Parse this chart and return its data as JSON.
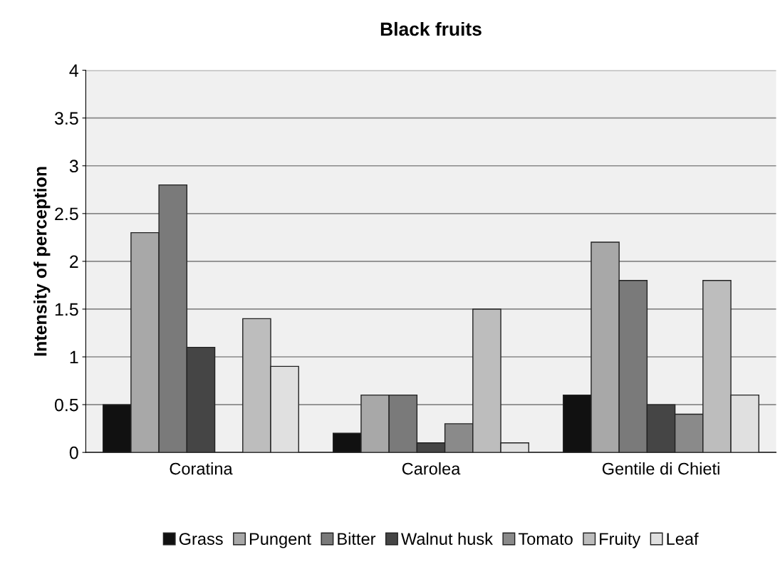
{
  "chart_data": {
    "type": "bar",
    "title": "Black fruits",
    "ylabel": "Intensity of perception",
    "categories": [
      "Coratina",
      "Carolea",
      "Gentile di Chieti"
    ],
    "series": [
      {
        "name": "Grass",
        "color": "#111111",
        "values": [
          0.5,
          0.2,
          0.6
        ]
      },
      {
        "name": "Pungent",
        "color": "#a8a8a8",
        "values": [
          2.3,
          0.6,
          2.2
        ]
      },
      {
        "name": "Bitter",
        "color": "#7a7a7a",
        "values": [
          2.8,
          0.6,
          1.8
        ]
      },
      {
        "name": "Walnut husk",
        "color": "#454545",
        "values": [
          1.1,
          0.1,
          0.5
        ]
      },
      {
        "name": "Tomato",
        "color": "#8a8a8a",
        "values": [
          null,
          0.3,
          0.4
        ]
      },
      {
        "name": "Fruity",
        "color": "#bdbdbd",
        "values": [
          1.4,
          1.5,
          1.8
        ]
      },
      {
        "name": "Leaf",
        "color": "#e0e0e0",
        "values": [
          0.9,
          0.1,
          0.6
        ]
      }
    ],
    "ylim": [
      0,
      4
    ],
    "yticks": [
      0,
      0.5,
      1,
      1.5,
      2,
      2.5,
      3,
      3.5,
      4
    ],
    "grid": "y",
    "legend": "bottom"
  }
}
